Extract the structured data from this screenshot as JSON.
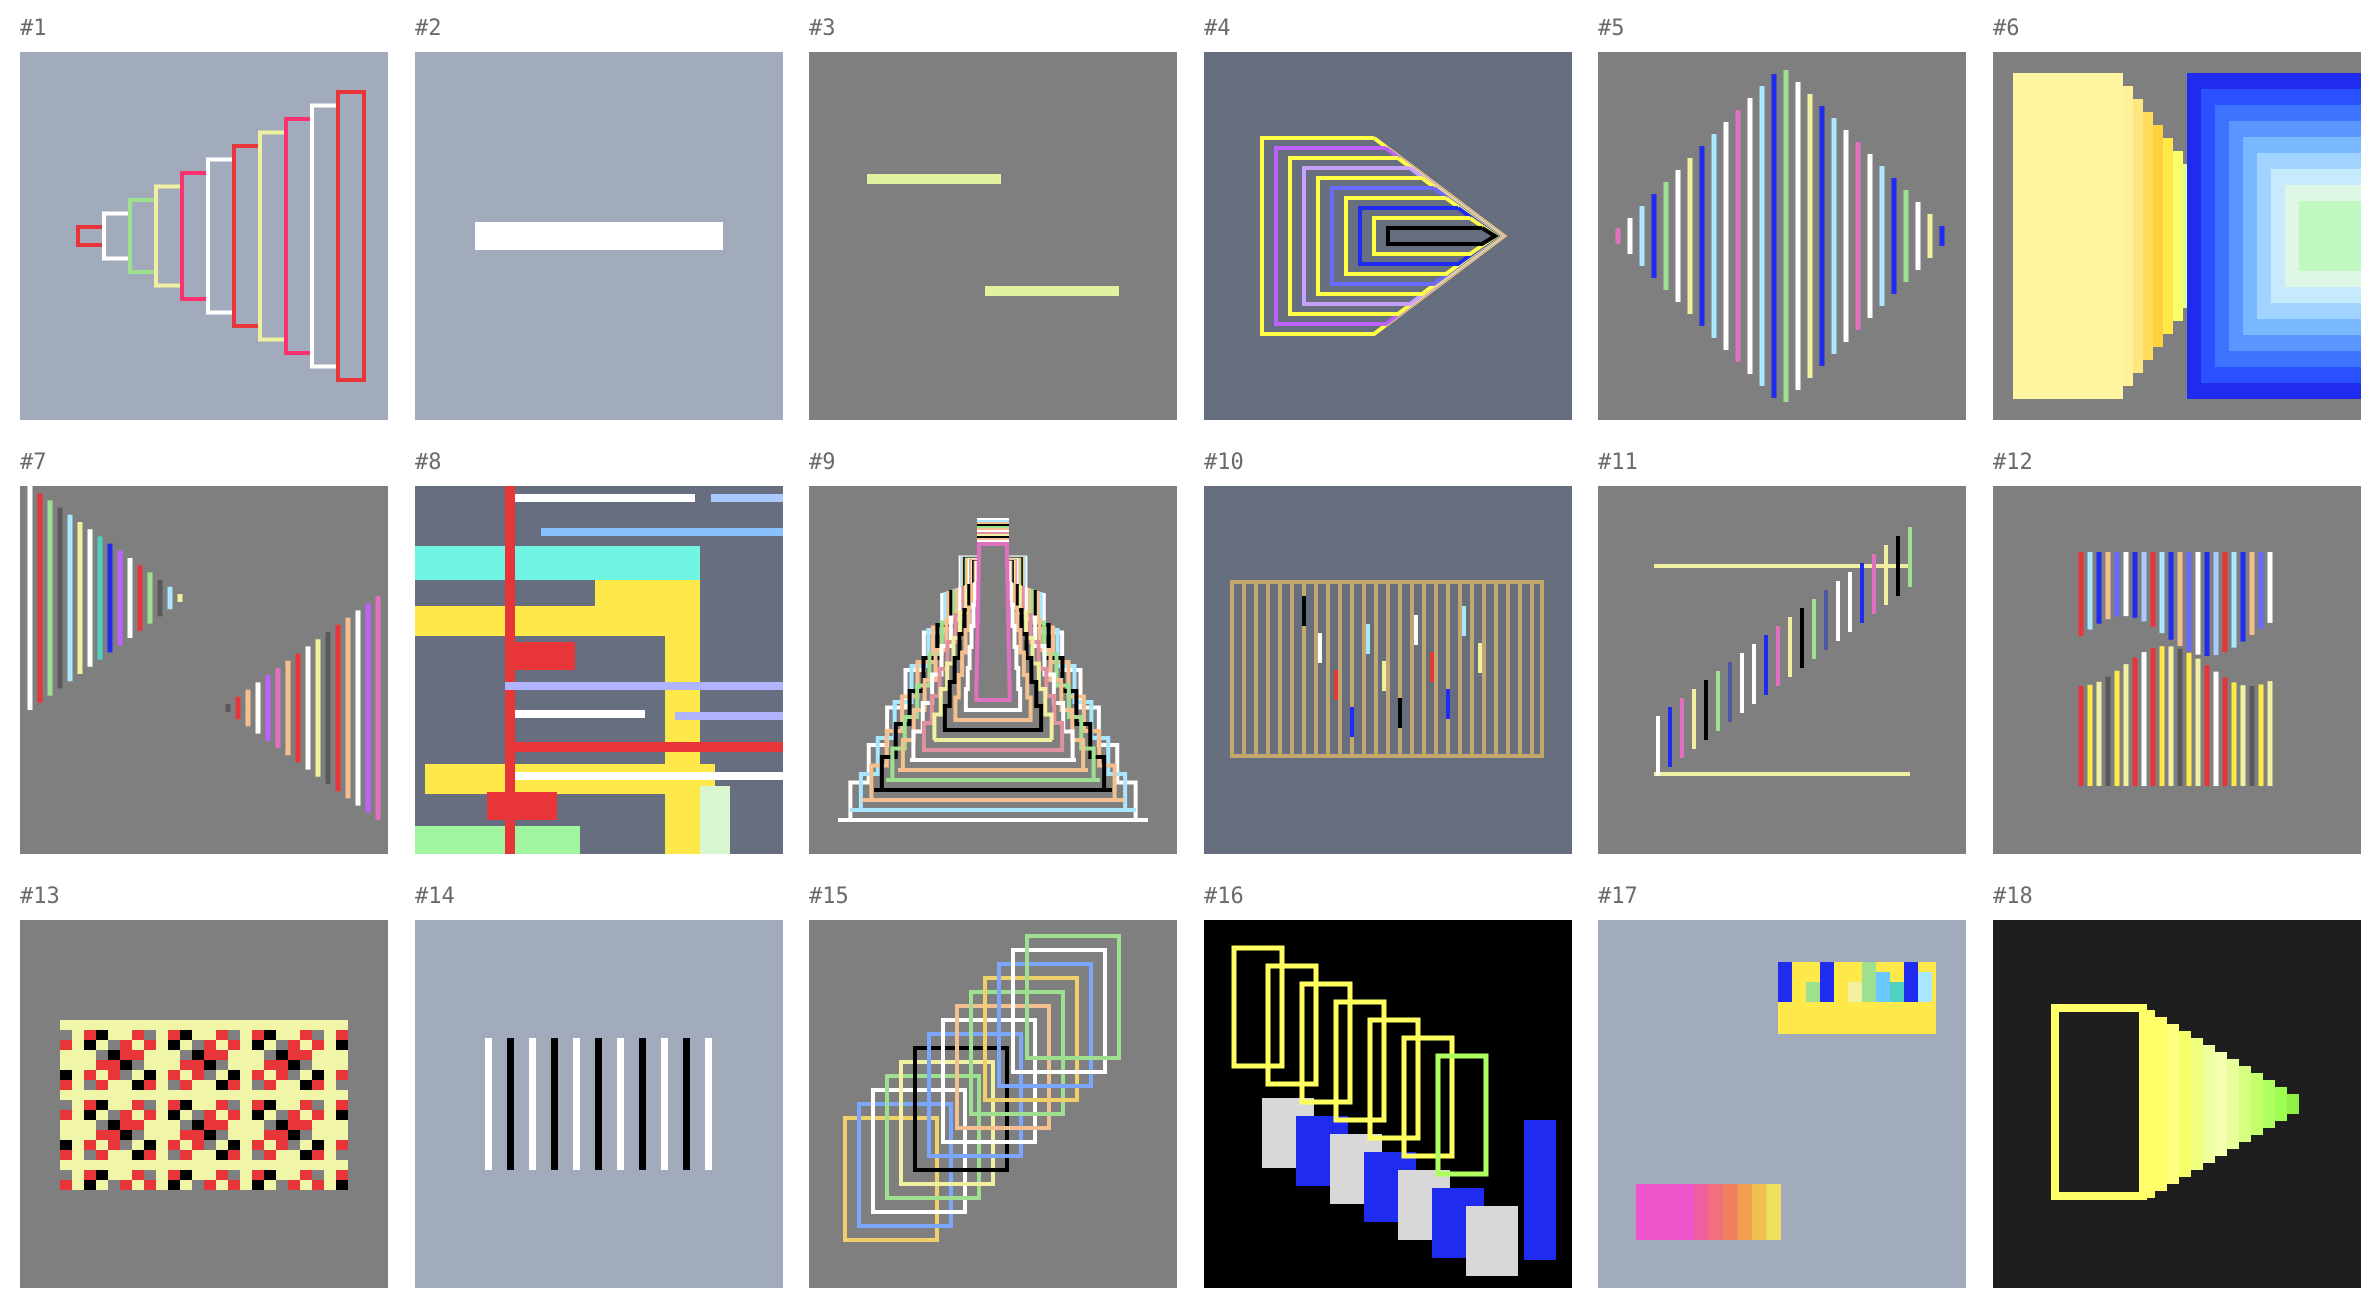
{
  "tiles": [
    {
      "label": "#1",
      "bg": "#a2abbc"
    },
    {
      "label": "#2",
      "bg": "#a2abbc"
    },
    {
      "label": "#3",
      "bg": "#7f7f7f"
    },
    {
      "label": "#4",
      "bg": "#666e80"
    },
    {
      "label": "#5",
      "bg": "#7f7f7f"
    },
    {
      "label": "#6",
      "bg": "#7f7f7f"
    },
    {
      "label": "#7",
      "bg": "#7f7f7f"
    },
    {
      "label": "#8",
      "bg": "#666e80"
    },
    {
      "label": "#9",
      "bg": "#7f7f7f"
    },
    {
      "label": "#10",
      "bg": "#666e80"
    },
    {
      "label": "#11",
      "bg": "#7f7f7f"
    },
    {
      "label": "#12",
      "bg": "#7f7f7f"
    },
    {
      "label": "#13",
      "bg": "#7f7f7f"
    },
    {
      "label": "#14",
      "bg": "#a2abbc"
    },
    {
      "label": "#15",
      "bg": "#7f7f7f"
    },
    {
      "label": "#16",
      "bg": "#000000"
    },
    {
      "label": "#17",
      "bg": "#a2abbc"
    },
    {
      "label": "#18",
      "bg": "#1e1e1e"
    }
  ]
}
